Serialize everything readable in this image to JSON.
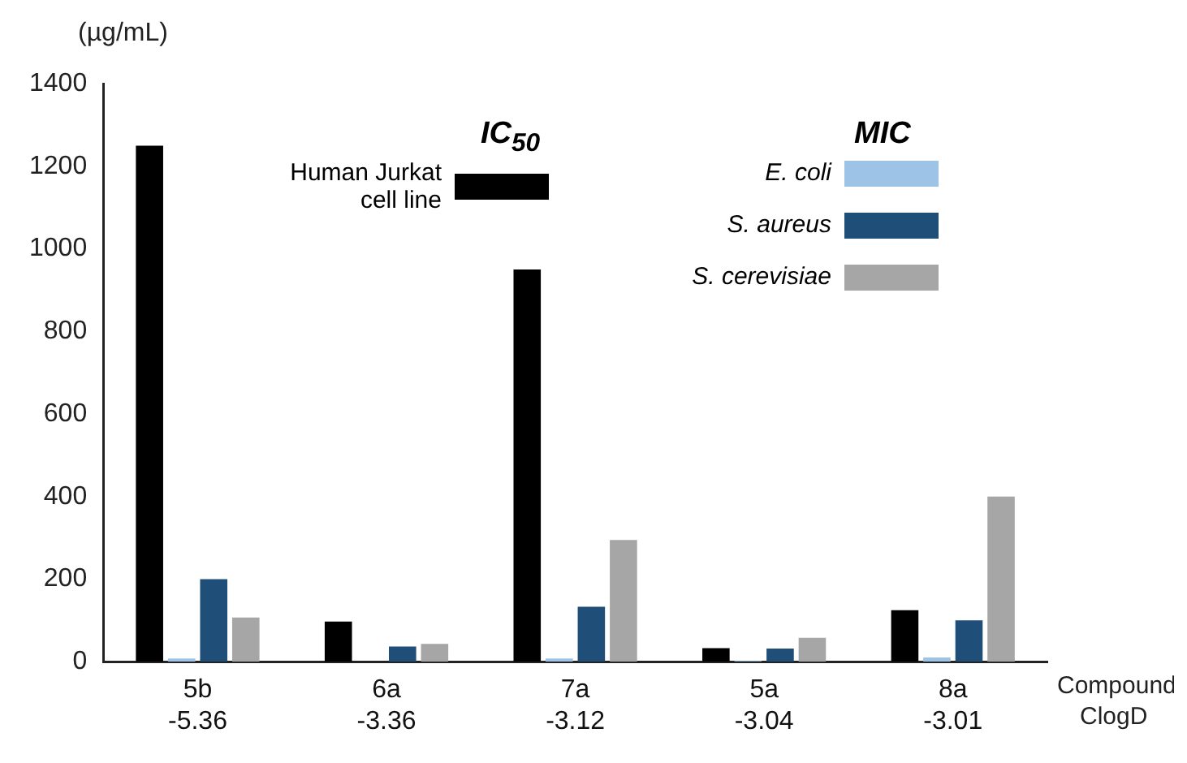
{
  "chart_data": {
    "type": "bar",
    "ylabel": "(µg/mL)",
    "legend_title": "MIC",
    "categories": [
      "5b\n-5.36",
      "6a\n-3.36",
      "7a\n-3.12",
      "5a\n-3.04",
      "8a\n-3.01"
    ],
    "series": [
      {
        "name": "Human Jurkat cell line",
        "color": "#000000",
        "values": [
          1250,
          97,
          950,
          33,
          125
        ]
      },
      {
        "name": "E. coli",
        "color": "#9dc3e6",
        "values": [
          8,
          null,
          8,
          2,
          10
        ]
      },
      {
        "name": "S. aureus",
        "color": "#1f4e79",
        "values": [
          200,
          37,
          133,
          32,
          100
        ]
      },
      {
        "name": "S. cerevisiae",
        "color": "#a6a6a6",
        "values": [
          107,
          43,
          295,
          58,
          400
        ]
      }
    ],
    "ylim": [
      0,
      1400
    ],
    "yticks": [
      0,
      200,
      400,
      600,
      800,
      1000,
      1200,
      1400
    ],
    "grid": false,
    "legend": "top",
    "annotations": [
      "IC$_{50}$",
      "Compound",
      "ClogD"
    ]
  }
}
